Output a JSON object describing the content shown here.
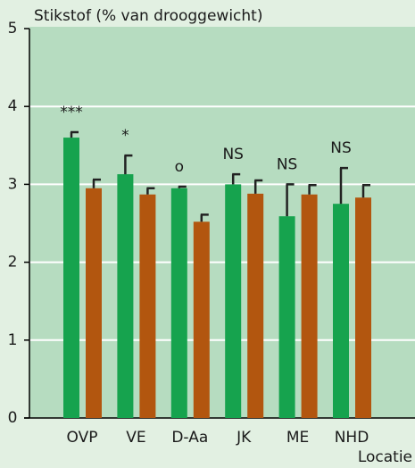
{
  "chart_data": {
    "type": "bar",
    "y_label": "Stikstof (% van drooggewicht)",
    "x_label": "Locatie",
    "categories": [
      "OVP",
      "VE",
      "D-Aa",
      "JK",
      "ME",
      "NHD"
    ],
    "series": [
      {
        "color": "#16a34e",
        "values": [
          3.6,
          3.13,
          2.95,
          3.0,
          2.59,
          2.75
        ],
        "errors": [
          0.07,
          0.24,
          0.02,
          0.13,
          0.41,
          0.46
        ]
      },
      {
        "color": "#b2560f",
        "values": [
          2.95,
          2.87,
          2.52,
          2.88,
          2.87,
          2.83
        ],
        "errors": [
          0.11,
          0.08,
          0.09,
          0.17,
          0.12,
          0.16
        ]
      }
    ],
    "annotations": [
      "***",
      "*",
      "o",
      "NS",
      "NS",
      "NS"
    ],
    "ylim": [
      0,
      5
    ],
    "yticks": [
      0,
      1,
      2,
      3,
      4,
      5
    ],
    "grid": true
  }
}
